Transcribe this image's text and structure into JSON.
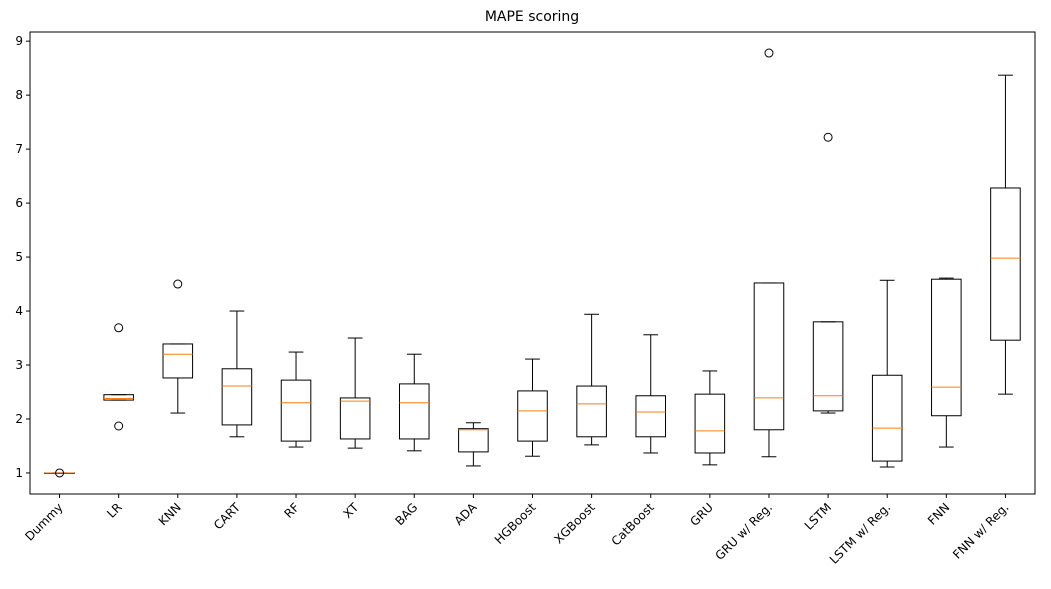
{
  "chart_data": {
    "type": "box",
    "title": "MAPE scoring",
    "categories": [
      "Dummy",
      "LR",
      "KNN",
      "CART",
      "RF",
      "XT",
      "BAG",
      "ADA",
      "HGBoost",
      "XGBoost",
      "CatBoost",
      "GRU",
      "GRU w/ Reg.",
      "LSTM",
      "LSTM w/ Reg.",
      "FNN",
      "FNN w/ Reg."
    ],
    "boxes": [
      {
        "whislo": 1.0,
        "q1": 1.0,
        "med": 1.0,
        "q3": 1.0,
        "whishi": 1.0,
        "fliers": [
          1.0
        ]
      },
      {
        "whislo": 2.35,
        "q1": 2.35,
        "med": 2.38,
        "q3": 2.45,
        "whishi": 2.45,
        "fliers": [
          3.69,
          1.87
        ]
      },
      {
        "whislo": 2.11,
        "q1": 2.76,
        "med": 3.2,
        "q3": 3.39,
        "whishi": 3.39,
        "fliers": [
          4.5
        ]
      },
      {
        "whislo": 1.67,
        "q1": 1.89,
        "med": 2.61,
        "q3": 2.93,
        "whishi": 4.0,
        "fliers": []
      },
      {
        "whislo": 1.48,
        "q1": 1.59,
        "med": 2.3,
        "q3": 2.72,
        "whishi": 3.24,
        "fliers": []
      },
      {
        "whislo": 1.46,
        "q1": 1.63,
        "med": 2.33,
        "q3": 2.39,
        "whishi": 3.5,
        "fliers": []
      },
      {
        "whislo": 1.41,
        "q1": 1.63,
        "med": 2.3,
        "q3": 2.65,
        "whishi": 3.2,
        "fliers": []
      },
      {
        "whislo": 1.13,
        "q1": 1.39,
        "med": 1.8,
        "q3": 1.82,
        "whishi": 1.93,
        "fliers": []
      },
      {
        "whislo": 1.31,
        "q1": 1.59,
        "med": 2.15,
        "q3": 2.52,
        "whishi": 3.11,
        "fliers": []
      },
      {
        "whislo": 1.52,
        "q1": 1.67,
        "med": 2.28,
        "q3": 2.61,
        "whishi": 3.94,
        "fliers": []
      },
      {
        "whislo": 1.37,
        "q1": 1.67,
        "med": 2.13,
        "q3": 2.43,
        "whishi": 3.56,
        "fliers": []
      },
      {
        "whislo": 1.15,
        "q1": 1.37,
        "med": 1.78,
        "q3": 2.46,
        "whishi": 2.89,
        "fliers": []
      },
      {
        "whislo": 1.3,
        "q1": 1.8,
        "med": 2.39,
        "q3": 4.52,
        "whishi": 4.52,
        "fliers": [
          8.78
        ]
      },
      {
        "whislo": 2.11,
        "q1": 2.15,
        "med": 2.43,
        "q3": 3.8,
        "whishi": 3.8,
        "fliers": [
          7.22
        ]
      },
      {
        "whislo": 1.11,
        "q1": 1.22,
        "med": 1.83,
        "q3": 2.81,
        "whishi": 4.57,
        "fliers": []
      },
      {
        "whislo": 1.48,
        "q1": 2.06,
        "med": 2.59,
        "q3": 4.59,
        "whishi": 4.61,
        "fliers": []
      },
      {
        "whislo": 2.46,
        "q1": 3.46,
        "med": 4.98,
        "q3": 6.28,
        "whishi": 8.37,
        "fliers": []
      }
    ],
    "box_color": "#000000",
    "median_color": "#ff7f0e",
    "ylim": [
      0.61,
      9.17
    ],
    "yticks": [
      1,
      2,
      3,
      4,
      5,
      6,
      7,
      8,
      9
    ]
  }
}
